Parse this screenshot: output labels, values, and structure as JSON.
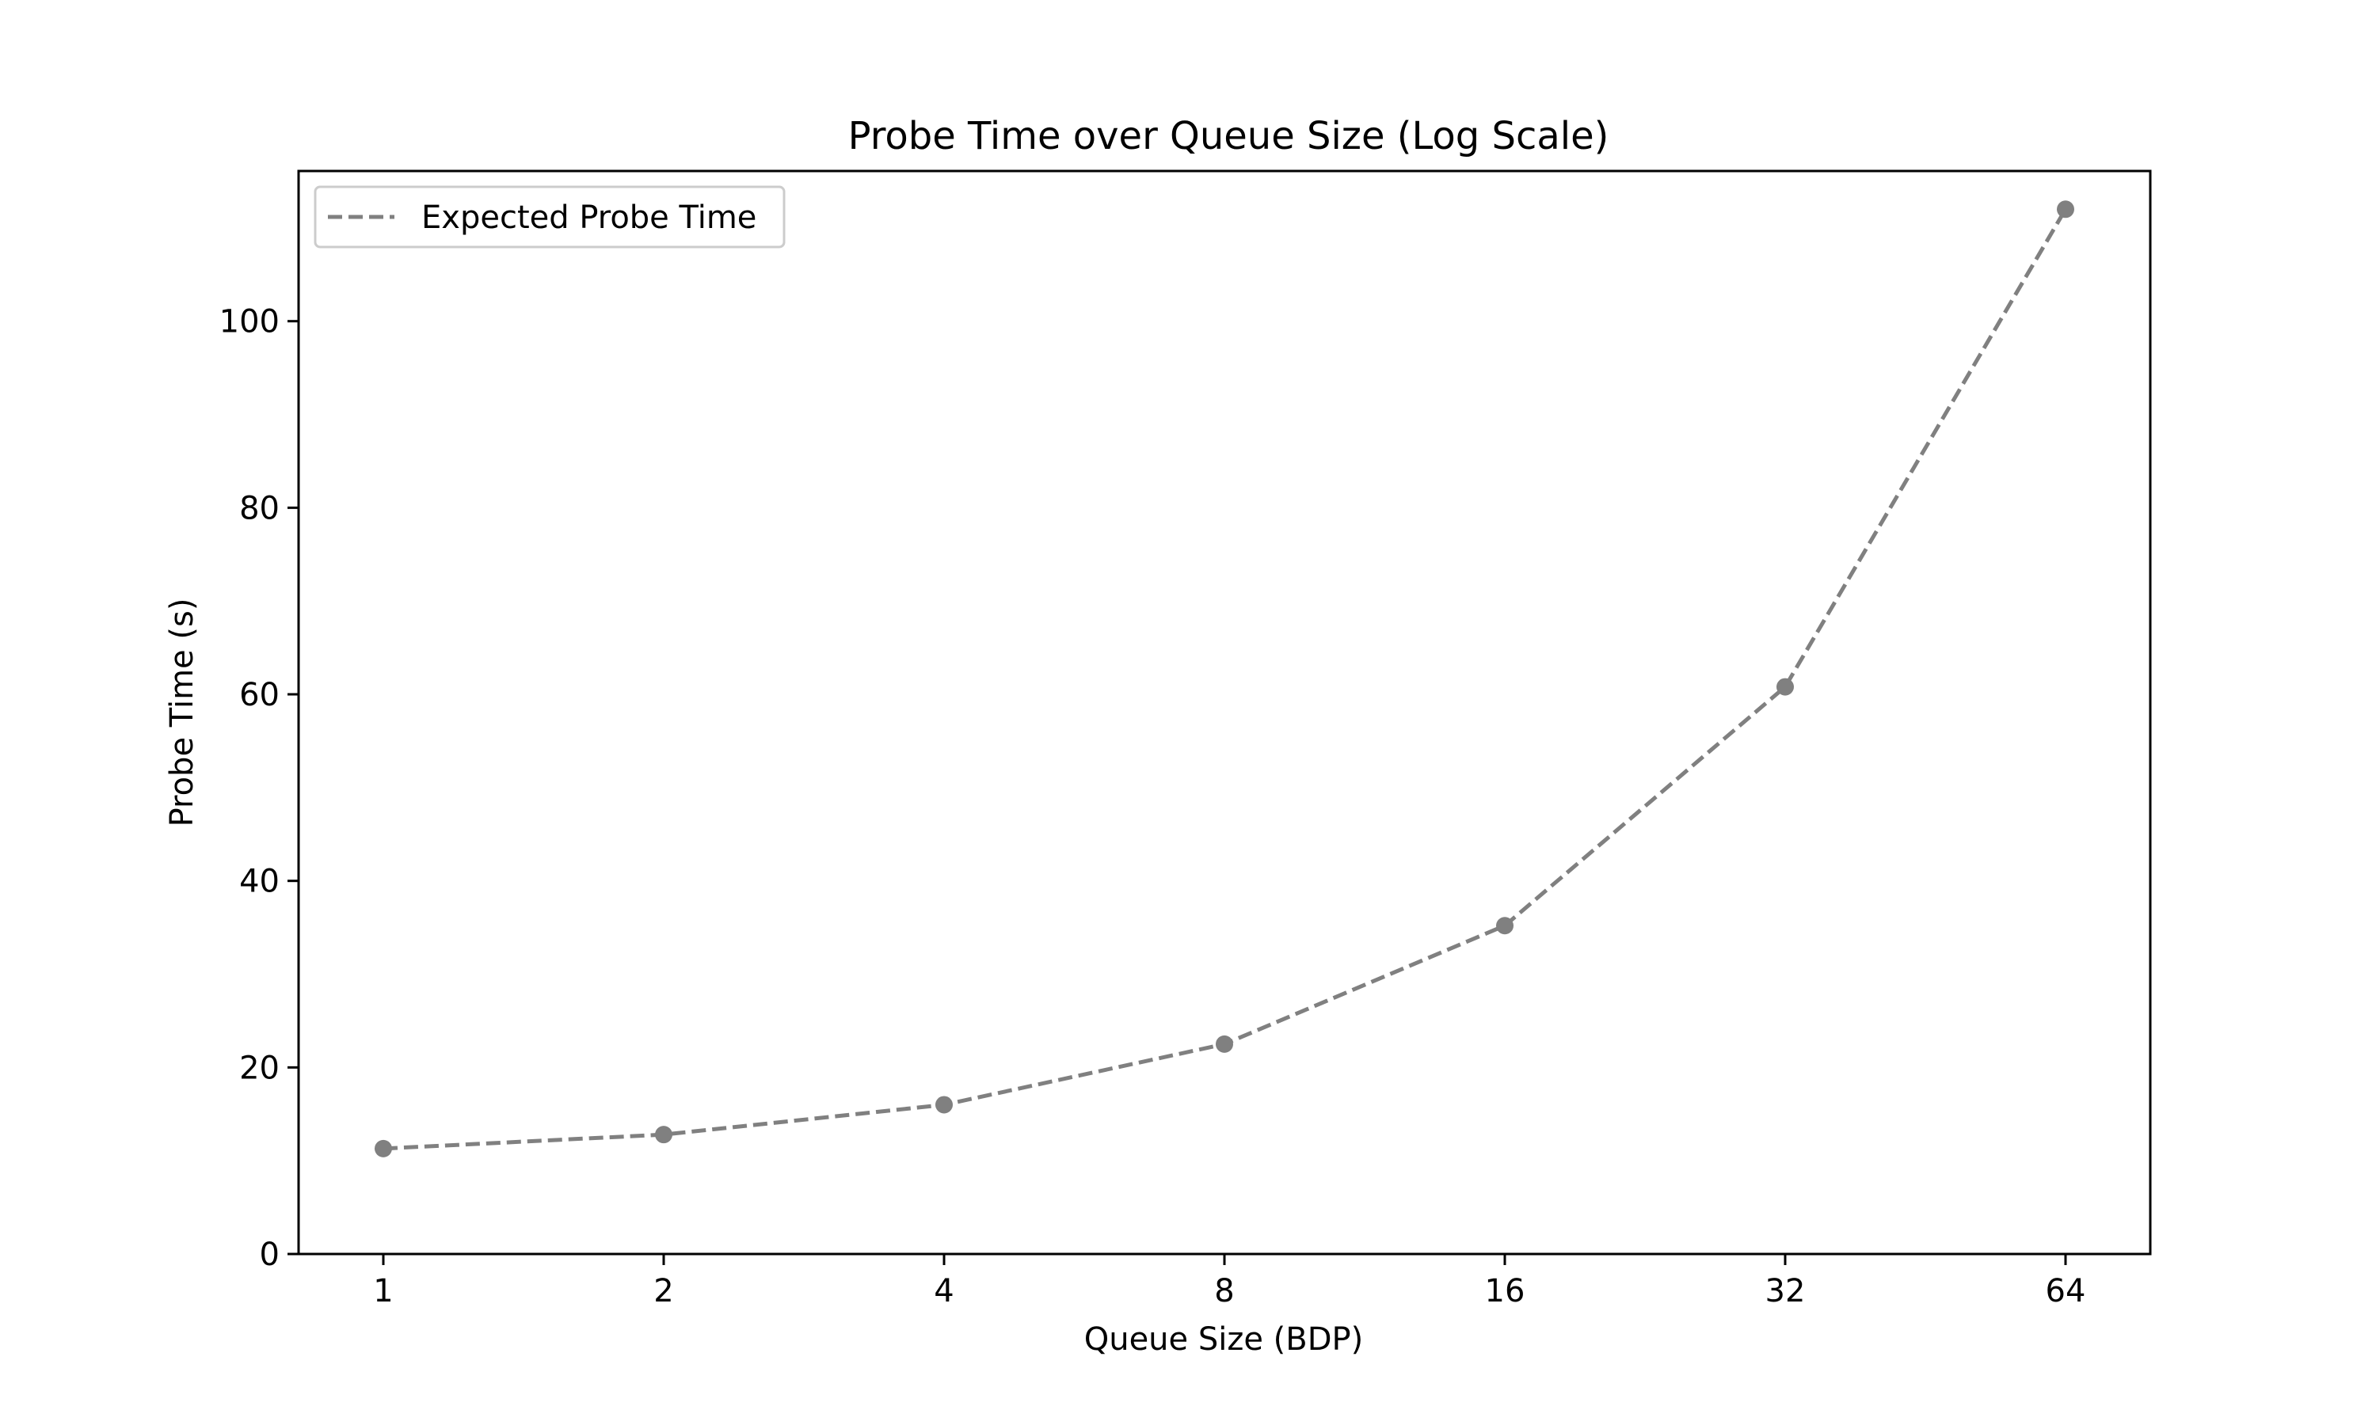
{
  "chart_data": {
    "type": "line",
    "title": "Probe Time over Queue Size (Log Scale)",
    "xlabel": "Queue Size (BDP)",
    "ylabel": "Probe Time (s)",
    "xscale": "log2",
    "x": [
      1,
      2,
      4,
      8,
      16,
      32,
      64
    ],
    "x_tick_labels": [
      "1",
      "2",
      "4",
      "8",
      "16",
      "32",
      "64"
    ],
    "y_ticks": [
      0,
      20,
      40,
      60,
      80,
      100
    ],
    "ylim": [
      0,
      116.1
    ],
    "series": [
      {
        "name": "Expected Probe Time",
        "values": [
          11.3,
          12.8,
          16.0,
          22.5,
          35.2,
          60.8,
          112.0
        ],
        "color": "#808080",
        "line_style": "dashed",
        "marker": "circle"
      }
    ],
    "legend_position": "top-left",
    "grid": false
  }
}
